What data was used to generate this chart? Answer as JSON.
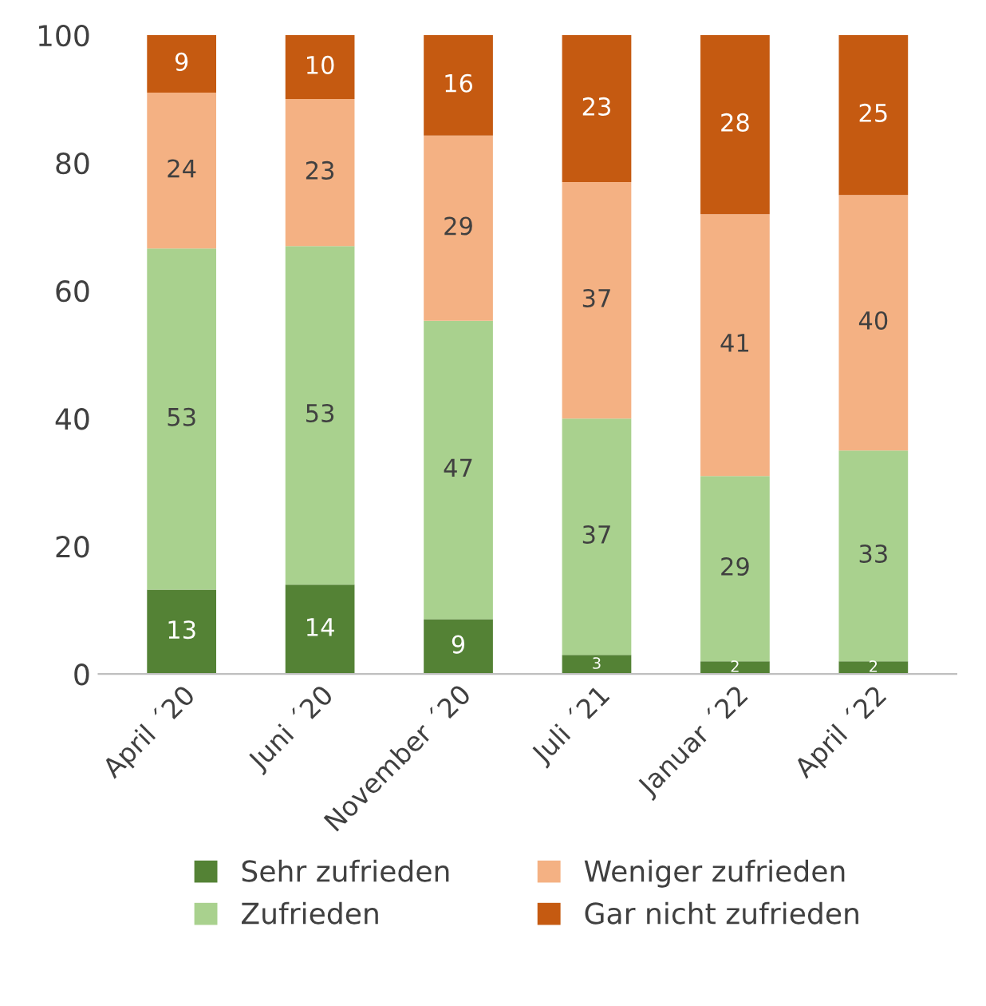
{
  "chart_data": {
    "type": "bar",
    "stacked": true,
    "categories": [
      "April ´20",
      "Juni ´20",
      "November ´20",
      "Juli ´21",
      "Januar ´22",
      "April ´22"
    ],
    "series": [
      {
        "name": "Sehr zufrieden",
        "color": "#548235",
        "values": [
          13.2,
          14,
          8.6,
          3,
          2,
          2
        ],
        "value_labels": [
          "13",
          "14",
          "9",
          "3",
          "2",
          "2"
        ]
      },
      {
        "name": "Zufrieden",
        "color": "#a9d18e",
        "values": [
          53.4,
          53,
          46.7,
          37,
          29,
          33
        ],
        "value_labels": [
          "53",
          "53",
          "47",
          "37",
          "29",
          "33"
        ]
      },
      {
        "name": "Weniger zufrieden",
        "color": "#f4b183",
        "values": [
          24.4,
          23,
          29,
          37,
          41,
          40
        ],
        "value_labels": [
          "24",
          "23",
          "29",
          "37",
          "41",
          "40"
        ]
      },
      {
        "name": "Gar nicht zufrieden",
        "color": "#c55a11",
        "values": [
          9,
          10,
          15.7,
          23,
          28,
          25
        ],
        "value_labels": [
          "9",
          "10",
          "16",
          "23",
          "28",
          "25"
        ]
      }
    ],
    "ylim": [
      0,
      100
    ],
    "yticks": [
      0,
      20,
      40,
      60,
      80,
      100
    ],
    "grid": false,
    "legend": "bottom"
  }
}
